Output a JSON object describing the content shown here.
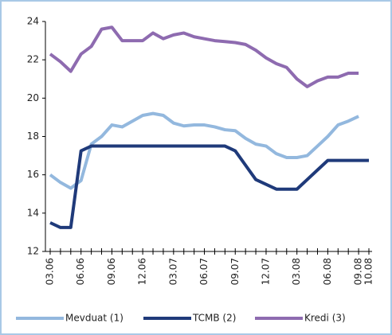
{
  "chart_data": {
    "type": "line",
    "categories": [
      "03.06",
      null,
      null,
      "06.06",
      null,
      null,
      "09.06",
      null,
      null,
      "12.06",
      null,
      null,
      "03.07",
      null,
      null,
      "06.07",
      null,
      null,
      "09.07",
      null,
      null,
      "12.07",
      null,
      null,
      "03.08",
      null,
      null,
      "06.08",
      null,
      null,
      "09.08",
      "10.08"
    ],
    "series": [
      {
        "name": "Mevduat (1)",
        "color": "#93b8de",
        "values": [
          16.0,
          15.6,
          15.3,
          15.7,
          17.6,
          18.0,
          18.6,
          18.5,
          18.8,
          19.1,
          19.2,
          19.1,
          18.7,
          18.55,
          18.6,
          18.6,
          18.5,
          18.35,
          18.3,
          17.9,
          17.6,
          17.5,
          17.1,
          16.9,
          16.9,
          17.0,
          17.5,
          18.0,
          18.6,
          18.8,
          19.05,
          null
        ]
      },
      {
        "name": "TCMB (2)",
        "color": "#1f3a7a",
        "values": [
          13.5,
          13.25,
          13.25,
          17.25,
          17.5,
          17.5,
          17.5,
          17.5,
          17.5,
          17.5,
          17.5,
          17.5,
          17.5,
          17.5,
          17.5,
          17.5,
          17.5,
          17.5,
          17.25,
          16.5,
          15.75,
          15.5,
          15.25,
          15.25,
          15.25,
          15.75,
          16.25,
          16.75,
          16.75,
          16.75,
          16.75,
          16.75
        ]
      },
      {
        "name": "Kredi (3)",
        "color": "#8e6bb0",
        "values": [
          22.3,
          21.9,
          21.4,
          22.3,
          22.7,
          23.6,
          23.7,
          23.0,
          23.0,
          23.0,
          23.4,
          23.1,
          23.3,
          23.4,
          23.2,
          23.1,
          23.0,
          22.95,
          22.9,
          22.8,
          22.5,
          22.1,
          21.8,
          21.6,
          21.0,
          20.6,
          20.9,
          21.1,
          21.1,
          21.3,
          21.3,
          null
        ]
      }
    ],
    "ylim": [
      12,
      24
    ],
    "yticks": [
      12,
      14,
      16,
      18,
      20,
      22,
      24
    ],
    "grid": false
  }
}
